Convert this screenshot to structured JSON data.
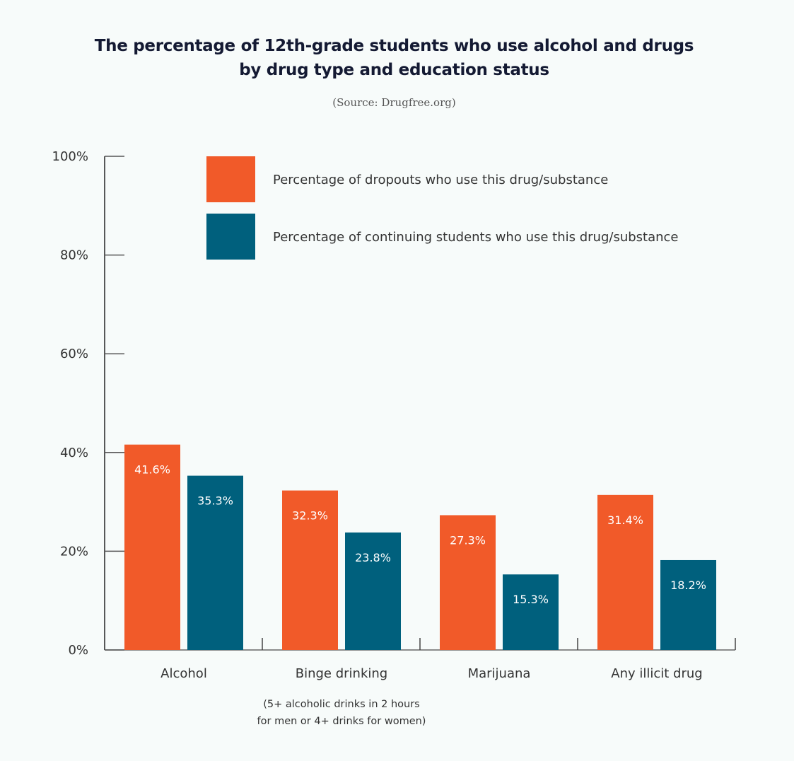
{
  "header": {
    "title_line1": "The percentage of 12th-grade students who use alcohol and drugs",
    "title_line2": "by drug type and education status",
    "source": "(Source: Drugfree.org)"
  },
  "colors": {
    "dropouts": "#f15a29",
    "continuing": "#00607d",
    "axis": "#222222"
  },
  "chart_data": {
    "type": "bar",
    "title": "The percentage of 12th-grade students who use alcohol and drugs by drug type and education status",
    "subtitle": "(Source: Drugfree.org)",
    "xlabel": "",
    "ylabel": "",
    "ylim": [
      0,
      100
    ],
    "yticks": [
      0,
      20,
      40,
      60,
      80,
      100
    ],
    "ytick_labels": [
      "0%",
      "20%",
      "40%",
      "60%",
      "80%",
      "100%"
    ],
    "grid": false,
    "legend_position": "top",
    "categories": [
      "Alcohol",
      "Binge drinking",
      "Marijuana",
      "Any illicit drug"
    ],
    "category_notes": [
      "",
      "(5+ alcoholic drinks in 2 hours|for men or 4+ drinks for women)",
      "",
      ""
    ],
    "series": [
      {
        "name": "Percentage of dropouts who use this drug/substance",
        "values": [
          41.6,
          32.3,
          27.3,
          31.4
        ],
        "labels": [
          "41.6%",
          "32.3%",
          "27.3%",
          "31.4%"
        ]
      },
      {
        "name": "Percentage of continuing students who use this drug/substance",
        "values": [
          35.3,
          23.8,
          15.3,
          18.2
        ],
        "labels": [
          "35.3%",
          "23.8%",
          "15.3%",
          "18.2%"
        ]
      }
    ]
  }
}
